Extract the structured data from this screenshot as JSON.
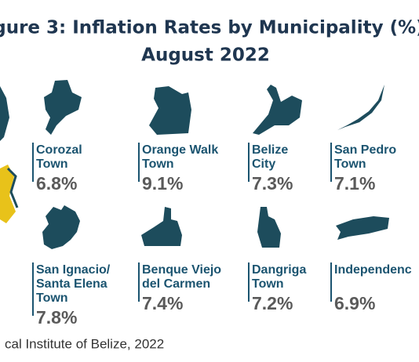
{
  "header": {
    "title_lines": [
      "igure 3: Inflation Rates by Municipality (%)",
      "August 2022"
    ]
  },
  "municipalities": [
    {
      "name": [
        "Corozal",
        "Town"
      ],
      "rate": "6.8%"
    },
    {
      "name": [
        "Orange Walk",
        "Town"
      ],
      "rate": "9.1%"
    },
    {
      "name": [
        "Belize",
        "City"
      ],
      "rate": "7.3%"
    },
    {
      "name": [
        "San Pedro",
        "Town"
      ],
      "rate": "7.1%"
    },
    {
      "name": [
        "San Ignacio/",
        "Santa Elena",
        "Town"
      ],
      "rate": "7.8%"
    },
    {
      "name": [
        "Benque Viejo",
        "del Carmen"
      ],
      "rate": "7.4%"
    },
    {
      "name": [
        "Dangriga",
        "Town"
      ],
      "rate": "7.2%"
    },
    {
      "name": [
        "Independenc"
      ],
      "rate": "6.9%"
    }
  ],
  "footer": {
    "source": "cal Institute of Belize, 2022"
  }
}
